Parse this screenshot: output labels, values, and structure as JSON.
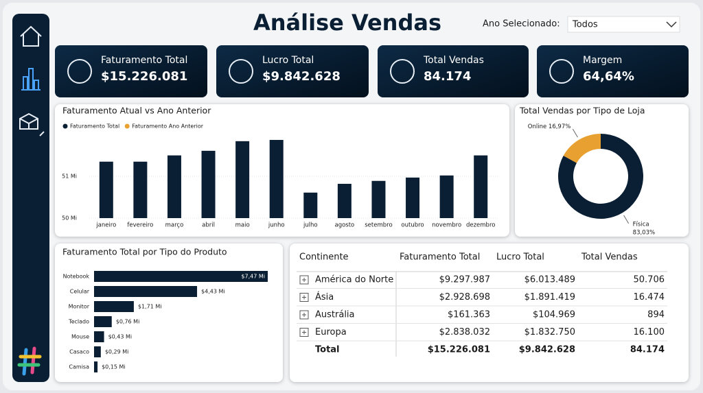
{
  "header": {
    "title": "Análise Vendas",
    "filter_label": "Ano Selecionado:",
    "filter_value": "Todos"
  },
  "kpis": [
    {
      "label": "Faturamento Total",
      "value": "$15.226.081"
    },
    {
      "label": "Lucro Total",
      "value": "$9.842.628"
    },
    {
      "label": "Total Vendas",
      "value": "84.174"
    },
    {
      "label": "Margem",
      "value": "64,64%"
    }
  ],
  "chart_data": [
    {
      "type": "bar",
      "title": "Faturamento Atual vs Ano Anterior",
      "categories": [
        "janeiro",
        "fevereiro",
        "março",
        "abril",
        "maio",
        "junho",
        "julho",
        "agosto",
        "setembro",
        "outubro",
        "novembro",
        "dezembro"
      ],
      "series": [
        {
          "name": "Faturamento Total",
          "color": "#0a1f33",
          "values": [
            51.35,
            51.35,
            51.5,
            51.61,
            51.84,
            51.87,
            50.61,
            50.82,
            50.89,
            50.97,
            51.02,
            51.5
          ]
        },
        {
          "name": "Faturamento Ano Anterior",
          "color": "#e8a030",
          "values": [
            null,
            null,
            null,
            null,
            null,
            null,
            null,
            null,
            null,
            null,
            null,
            null
          ]
        }
      ],
      "ylim": [
        50,
        52.1
      ],
      "yticks": [
        {
          "value": 50,
          "label": "50 Mi"
        },
        {
          "value": 51,
          "label": "51 Mi"
        }
      ],
      "legend": "top-left"
    },
    {
      "type": "donut",
      "title": "Total Vendas por Tipo de Loja",
      "categories": [
        "Física",
        "Online"
      ],
      "values": [
        83.03,
        16.97
      ],
      "value_labels": [
        "83,03%",
        "16,97%"
      ],
      "colors": [
        "#0a1f33",
        "#e8a030"
      ]
    },
    {
      "type": "hbar",
      "title": "Faturamento Total por Tipo do Produto",
      "categories": [
        "Notebook",
        "Celular",
        "Monitor",
        "Teclado",
        "Mouse",
        "Casaco",
        "Camisa"
      ],
      "values": [
        7.47,
        4.43,
        1.71,
        0.76,
        0.43,
        0.29,
        0.15
      ],
      "value_labels": [
        "$7,47 Mi",
        "$4,43 Mi",
        "$1,71 Mi",
        "$0,76 Mi",
        "$0,43 Mi",
        "$0,29 Mi",
        "$0,15 Mi"
      ],
      "color": "#0a1f33"
    }
  ],
  "table": {
    "columns": [
      "Continente",
      "Faturamento Total",
      "Lucro Total",
      "Total Vendas"
    ],
    "rows": [
      [
        "América do Norte",
        "$9.297.987",
        "$6.013.489",
        "50.706"
      ],
      [
        "Ásia",
        "$2.928.698",
        "$1.891.419",
        "16.474"
      ],
      [
        "Austrália",
        "$161.363",
        "$104.969",
        "894"
      ],
      [
        "Europa",
        "$2.838.032",
        "$1.832.750",
        "16.100"
      ]
    ],
    "total": [
      "Total",
      "$15.226.081",
      "$9.842.628",
      "84.174"
    ]
  }
}
